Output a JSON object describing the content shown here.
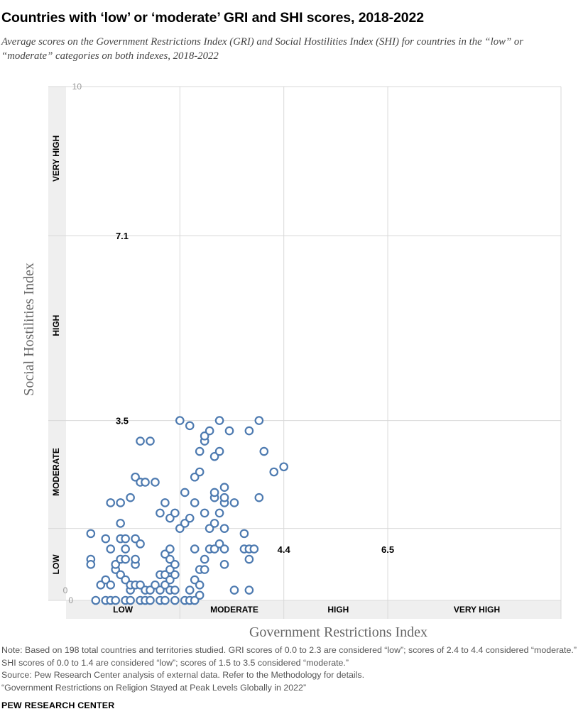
{
  "title": "Countries with ‘low’ or ‘moderate’ GRI and SHI scores, 2018-2022",
  "subtitle": "Average scores on the Government Restrictions Index (GRI) and Social Hostilities Index (SHI) for countries in the “low” or “moderate” categories on both indexes, 2018-2022",
  "notes": [
    "Note: Based on 198 total countries and territories studied. GRI scores of 0.0 to 2.3 are considered “low”; scores of 2.4 to 4.4 considered “moderate.” SHI scores of 0.0 to 1.4 are considered “low”; scores of 1.5 to 3.5 considered “moderate.”",
    "Source: Pew Research Center analysis of external data. Refer to the Methodology for details.",
    "“Government Restrictions on Religion Stayed at Peak Levels Globally in 2022”"
  ],
  "brand": "PEW RESEARCH CENTER",
  "colors": {
    "marker": "#4d7ab0",
    "band": "#efefef",
    "grid": "#d9d9d9"
  },
  "chart_data": {
    "type": "scatter",
    "xlabel": "Government Restrictions Index",
    "ylabel": "Social Hostilities Index",
    "xlim": [
      0,
      10
    ],
    "ylim": [
      0,
      10
    ],
    "y_ticks": [
      "0",
      "10"
    ],
    "x_tick_label": "0",
    "x_categories": [
      {
        "label": "LOW",
        "from": 0,
        "to": 2.3
      },
      {
        "label": "MODERATE",
        "from": 2.4,
        "to": 4.4
      },
      {
        "label": "HIGH",
        "from": 4.5,
        "to": 6.5
      },
      {
        "label": "VERY HIGH",
        "from": 6.6,
        "to": 10
      }
    ],
    "y_categories": [
      {
        "label": "LOW",
        "from": 0,
        "to": 1.4
      },
      {
        "label": "MODERATE",
        "from": 1.5,
        "to": 3.5
      },
      {
        "label": "HIGH",
        "from": 3.6,
        "to": 7.1
      },
      {
        "label": "VERY HIGH",
        "from": 7.2,
        "to": 10
      }
    ],
    "x_thresholds": [
      "4.4",
      "6.5"
    ],
    "y_thresholds": [
      "3.5",
      "7.1"
    ],
    "grid": true,
    "series": [
      {
        "points": [
          [
            0.5,
            0.8
          ],
          [
            0.5,
            0.7
          ],
          [
            0.5,
            1.3
          ],
          [
            0.6,
            0.0
          ],
          [
            0.7,
            0.3
          ],
          [
            0.8,
            0.4
          ],
          [
            0.8,
            0.0
          ],
          [
            0.8,
            1.2
          ],
          [
            0.9,
            0.3
          ],
          [
            0.9,
            0.0
          ],
          [
            0.9,
            1.0
          ],
          [
            0.9,
            1.9
          ],
          [
            1.0,
            0.0
          ],
          [
            1.0,
            0.6
          ],
          [
            1.0,
            0.7
          ],
          [
            1.1,
            0.5
          ],
          [
            1.1,
            0.8
          ],
          [
            1.1,
            1.2
          ],
          [
            1.1,
            1.5
          ],
          [
            1.1,
            1.9
          ],
          [
            1.2,
            0.0
          ],
          [
            1.2,
            0.4
          ],
          [
            1.2,
            0.8
          ],
          [
            1.2,
            1.0
          ],
          [
            1.2,
            1.2
          ],
          [
            1.3,
            0.0
          ],
          [
            1.3,
            0.2
          ],
          [
            1.3,
            0.3
          ],
          [
            1.3,
            2.0
          ],
          [
            1.4,
            0.3
          ],
          [
            1.4,
            0.7
          ],
          [
            1.4,
            0.8
          ],
          [
            1.4,
            1.2
          ],
          [
            1.4,
            2.4
          ],
          [
            1.5,
            0.0
          ],
          [
            1.5,
            0.3
          ],
          [
            1.5,
            1.1
          ],
          [
            1.5,
            2.3
          ],
          [
            1.5,
            3.1
          ],
          [
            1.6,
            0.0
          ],
          [
            1.6,
            0.2
          ],
          [
            1.6,
            2.3
          ],
          [
            1.7,
            0.0
          ],
          [
            1.7,
            0.2
          ],
          [
            1.7,
            3.1
          ],
          [
            1.8,
            0.3
          ],
          [
            1.8,
            2.3
          ],
          [
            1.9,
            0.0
          ],
          [
            1.9,
            0.2
          ],
          [
            1.9,
            0.5
          ],
          [
            1.9,
            1.7
          ],
          [
            2.0,
            0.0
          ],
          [
            2.0,
            0.3
          ],
          [
            2.0,
            0.5
          ],
          [
            2.0,
            0.9
          ],
          [
            2.0,
            1.9
          ],
          [
            2.1,
            0.2
          ],
          [
            2.1,
            0.4
          ],
          [
            2.1,
            0.6
          ],
          [
            2.1,
            0.8
          ],
          [
            2.1,
            1.0
          ],
          [
            2.1,
            1.6
          ],
          [
            2.2,
            0.0
          ],
          [
            2.2,
            0.2
          ],
          [
            2.2,
            0.5
          ],
          [
            2.2,
            0.7
          ],
          [
            2.2,
            1.7
          ],
          [
            2.3,
            1.4
          ],
          [
            2.3,
            3.5
          ],
          [
            2.4,
            0.0
          ],
          [
            2.4,
            1.5
          ],
          [
            2.4,
            2.1
          ],
          [
            2.5,
            0.0
          ],
          [
            2.5,
            0.2
          ],
          [
            2.5,
            1.6
          ],
          [
            2.5,
            3.4
          ],
          [
            2.6,
            0.0
          ],
          [
            2.6,
            0.4
          ],
          [
            2.6,
            1.0
          ],
          [
            2.6,
            1.9
          ],
          [
            2.6,
            2.4
          ],
          [
            2.7,
            0.1
          ],
          [
            2.7,
            0.3
          ],
          [
            2.7,
            0.6
          ],
          [
            2.7,
            2.5
          ],
          [
            2.7,
            2.9
          ],
          [
            2.8,
            0.6
          ],
          [
            2.8,
            0.8
          ],
          [
            2.8,
            1.7
          ],
          [
            2.8,
            3.1
          ],
          [
            2.8,
            3.2
          ],
          [
            2.9,
            1.0
          ],
          [
            2.9,
            1.4
          ],
          [
            2.9,
            3.3
          ],
          [
            3.0,
            1.0
          ],
          [
            3.0,
            1.5
          ],
          [
            3.0,
            2.0
          ],
          [
            3.0,
            2.1
          ],
          [
            3.0,
            2.8
          ],
          [
            3.1,
            1.1
          ],
          [
            3.1,
            1.7
          ],
          [
            3.1,
            2.9
          ],
          [
            3.1,
            3.5
          ],
          [
            3.2,
            0.7
          ],
          [
            3.2,
            1.0
          ],
          [
            3.2,
            1.4
          ],
          [
            3.2,
            1.9
          ],
          [
            3.2,
            2.0
          ],
          [
            3.2,
            2.2
          ],
          [
            3.3,
            3.3
          ],
          [
            3.4,
            0.2
          ],
          [
            3.4,
            1.9
          ],
          [
            3.6,
            1.0
          ],
          [
            3.6,
            1.3
          ],
          [
            3.7,
            0.8
          ],
          [
            3.7,
            1.0
          ],
          [
            3.7,
            0.2
          ],
          [
            3.7,
            3.3
          ],
          [
            3.8,
            1.0
          ],
          [
            3.9,
            2.0
          ],
          [
            3.9,
            3.5
          ],
          [
            4.0,
            2.9
          ],
          [
            4.2,
            2.5
          ],
          [
            4.4,
            2.6
          ]
        ]
      }
    ]
  }
}
